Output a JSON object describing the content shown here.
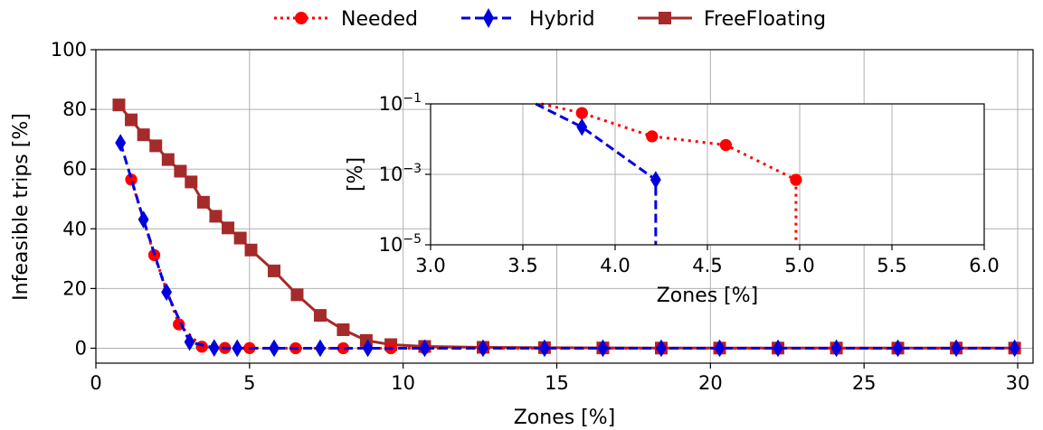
{
  "chart_data": {
    "type": "line",
    "legend_position": "top",
    "grid": true,
    "colors": {
      "Needed": "#ff0000",
      "Hybrid": "#0000dd",
      "FreeFloating": "#a52a2a"
    },
    "series": [
      {
        "name": "Needed",
        "marker": "circle",
        "linestyle": "dotted",
        "points": [
          [
            1.15,
            56.5
          ],
          [
            1.9,
            31.2
          ],
          [
            2.7,
            8.0
          ],
          [
            3.45,
            0.5
          ],
          [
            4.2,
            0.1
          ],
          [
            5.0,
            0.05
          ],
          [
            6.5,
            0
          ],
          [
            8.05,
            0
          ],
          [
            9.6,
            0
          ],
          [
            10.7,
            0
          ],
          [
            12.6,
            0
          ],
          [
            14.6,
            0
          ],
          [
            16.5,
            0
          ],
          [
            18.4,
            0
          ],
          [
            20.3,
            0
          ],
          [
            22.2,
            0
          ],
          [
            24.1,
            0
          ],
          [
            26.1,
            0
          ],
          [
            28.0,
            0
          ],
          [
            29.9,
            0
          ]
        ]
      },
      {
        "name": "Hybrid",
        "marker": "diamond",
        "linestyle": "dashed",
        "points": [
          [
            0.8,
            68.8
          ],
          [
            1.55,
            43.1
          ],
          [
            2.3,
            18.8
          ],
          [
            3.05,
            2.1
          ],
          [
            3.85,
            0.1
          ],
          [
            4.6,
            0
          ],
          [
            5.8,
            0
          ],
          [
            7.3,
            0
          ],
          [
            8.85,
            0
          ],
          [
            10.7,
            0
          ],
          [
            12.6,
            0
          ],
          [
            14.6,
            0
          ],
          [
            16.5,
            0
          ],
          [
            18.4,
            0
          ],
          [
            20.3,
            0
          ],
          [
            22.2,
            0
          ],
          [
            24.1,
            0
          ],
          [
            26.1,
            0
          ],
          [
            28.0,
            0
          ],
          [
            29.9,
            0
          ]
        ]
      },
      {
        "name": "FreeFloating",
        "marker": "square",
        "linestyle": "solid",
        "points": [
          [
            0.75,
            81.5
          ],
          [
            1.15,
            76.5
          ],
          [
            1.55,
            71.5
          ],
          [
            1.95,
            67.8
          ],
          [
            2.35,
            63.2
          ],
          [
            2.75,
            59.3
          ],
          [
            3.1,
            55.7
          ],
          [
            3.5,
            48.9
          ],
          [
            3.9,
            44.2
          ],
          [
            4.3,
            40.3
          ],
          [
            4.7,
            36.9
          ],
          [
            5.05,
            32.9
          ],
          [
            5.8,
            25.9
          ],
          [
            6.55,
            17.9
          ],
          [
            7.3,
            11.0
          ],
          [
            8.05,
            6.2
          ],
          [
            8.8,
            2.6
          ],
          [
            9.6,
            1.2
          ],
          [
            10.7,
            0.6
          ],
          [
            12.6,
            0.3
          ],
          [
            14.6,
            0.2
          ],
          [
            16.5,
            0.1
          ],
          [
            18.4,
            0.05
          ],
          [
            20.3,
            0.05
          ],
          [
            22.2,
            0.05
          ],
          [
            24.1,
            0.05
          ],
          [
            26.1,
            0.05
          ],
          [
            28.0,
            0.05
          ],
          [
            29.9,
            0.05
          ]
        ]
      }
    ],
    "main": {
      "xlabel": "Zones [%]",
      "ylabel": "Infeasible trips [%]",
      "xlim": [
        0,
        30.5
      ],
      "ylim": [
        -5,
        100
      ],
      "xticks": [
        0,
        5,
        10,
        15,
        20,
        25,
        30
      ],
      "xtick_labels": [
        "0",
        "5",
        "10",
        "15",
        "20",
        "25",
        "30"
      ],
      "yticks": [
        0,
        20,
        40,
        60,
        80,
        100
      ],
      "ytick_labels": [
        "0",
        "20",
        "40",
        "60",
        "80",
        "100"
      ]
    },
    "inset": {
      "xlabel": "Zones [%]",
      "ylabel": "[%]",
      "xlim": [
        3.0,
        6.0
      ],
      "ylim_log10": [
        -5,
        -1
      ],
      "yscale": "log",
      "xticks": [
        3.0,
        3.5,
        4.0,
        4.5,
        5.0,
        5.5,
        6.0
      ],
      "xtick_labels": [
        "3.0",
        "3.5",
        "4.0",
        "4.5",
        "5.0",
        "5.5",
        "6.0"
      ],
      "yticks_log10": [
        -1,
        -3,
        -5
      ],
      "ytick_bases": [
        "10",
        "10",
        "10"
      ],
      "ytick_exps": [
        "−1",
        "−3",
        "−5"
      ],
      "series": [
        {
          "name": "Needed",
          "points": [
            [
              3.6,
              0.1
            ],
            [
              3.82,
              0.055
            ],
            [
              4.2,
              0.012
            ],
            [
              4.6,
              0.0068
            ],
            [
              4.98,
              0.0007
            ],
            [
              4.98,
              1e-05
            ]
          ]
        },
        {
          "name": "Hybrid",
          "points": [
            [
              3.57,
              0.1
            ],
            [
              3.82,
              0.022
            ],
            [
              4.22,
              0.0007
            ],
            [
              4.22,
              1e-05
            ]
          ]
        }
      ],
      "marker_points": {
        "Needed": [
          [
            3.82,
            0.055
          ],
          [
            4.2,
            0.012
          ],
          [
            4.6,
            0.0068
          ],
          [
            4.98,
            0.0007
          ]
        ],
        "Hybrid": [
          [
            3.82,
            0.022
          ],
          [
            4.22,
            0.0007
          ]
        ]
      }
    }
  }
}
